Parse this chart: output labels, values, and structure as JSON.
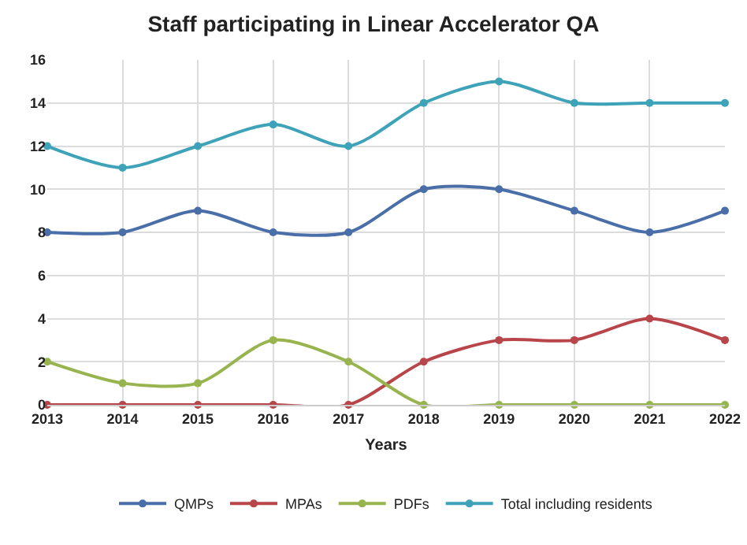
{
  "chart_data": {
    "type": "line",
    "title": "Staff participating in Linear Accelerator QA",
    "xlabel": "Years",
    "x": [
      2013,
      2014,
      2015,
      2016,
      2017,
      2018,
      2019,
      2020,
      2021,
      2022
    ],
    "series": [
      {
        "name": "QMPs",
        "color": "#4a6fa8",
        "values": [
          8,
          8,
          9,
          8,
          8,
          10,
          10,
          9,
          8,
          9
        ]
      },
      {
        "name": "MPAs",
        "color": "#b8454a",
        "values": [
          0,
          0,
          0,
          0,
          0,
          2,
          3,
          3,
          4,
          3
        ]
      },
      {
        "name": "PDFs",
        "color": "#98b44e",
        "values": [
          2,
          1,
          1,
          3,
          2,
          0,
          0,
          0,
          0,
          0
        ]
      },
      {
        "name": "Total including residents",
        "color": "#3ea3b8",
        "values": [
          12,
          11,
          12,
          13,
          12,
          14,
          15,
          14,
          14,
          14
        ]
      }
    ],
    "xlim": [
      2013,
      2022
    ],
    "xticks": [
      2013,
      2014,
      2015,
      2016,
      2017,
      2018,
      2019,
      2020,
      2021,
      2022
    ],
    "ylim": [
      0,
      16
    ],
    "yticks": [
      0,
      2,
      4,
      6,
      8,
      10,
      12,
      14,
      16
    ],
    "grid": true,
    "legend": "bottom",
    "marker": "circle",
    "line_style": "solid"
  }
}
